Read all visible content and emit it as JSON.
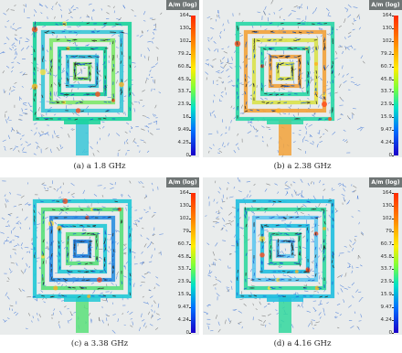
{
  "panels": [
    {
      "caption": "(a)  a 1.8 GHz",
      "legend_title": "A/m (log)",
      "ticks": [
        "164",
        "130",
        "102",
        "79.2",
        "60.8",
        "45.9",
        "33.7",
        "23.9",
        "16",
        "9.49",
        "4.25",
        "0"
      ]
    },
    {
      "caption": "(b)  a 2.38 GHz",
      "legend_title": "A/m (log)",
      "ticks": [
        "164",
        "130",
        "102",
        "79.2",
        "60.7",
        "45.8",
        "33.7",
        "23.9",
        "15.9",
        "9.47",
        "4.24",
        "0"
      ]
    },
    {
      "caption": "(c)  a 3.38 GHz",
      "legend_title": "A/m (log)",
      "ticks": [
        "164",
        "130",
        "102",
        "79",
        "60.7",
        "45.8",
        "33.7",
        "23.9",
        "15.9",
        "9.47",
        "4.24",
        "0"
      ]
    },
    {
      "caption": "(d)  a 4.16 GHz",
      "legend_title": "A/m (log)",
      "ticks": [
        "164",
        "130",
        "102",
        "79",
        "60.7",
        "45.8",
        "33.7",
        "23.9",
        "15.9",
        "9.47",
        "4.24",
        "0"
      ]
    }
  ],
  "colors": {
    "background": "#e9ecec",
    "legend_header": "#707676",
    "arrow_scatter": "#3a72d8"
  }
}
